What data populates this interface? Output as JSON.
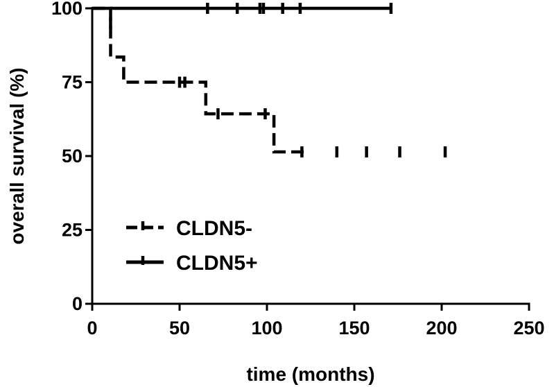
{
  "chart_data": {
    "type": "line",
    "subtype": "kaplan-meier",
    "title": "",
    "xlabel": "time (months)",
    "ylabel": "overall survival (%)",
    "xlim": [
      0,
      250
    ],
    "ylim": [
      0,
      100
    ],
    "xticks": [
      "0",
      "50",
      "100",
      "150",
      "200",
      "250"
    ],
    "yticks": [
      "0",
      "25",
      "50",
      "75",
      "100"
    ],
    "grid": false,
    "legend_position": "bottom-left",
    "series": [
      {
        "name": "CLDN5-",
        "color": "#000000",
        "line_style": "dashed",
        "x": [
          0,
          10.5,
          10.5,
          18,
          18,
          65,
          65,
          104,
          104,
          124
        ],
        "y": [
          100,
          100,
          83.5,
          83.5,
          75,
          75,
          64.3,
          64.3,
          51.4,
          51.4
        ],
        "censored": [
          {
            "x": 10.5,
            "y": 95
          },
          {
            "x": 50,
            "y": 75
          },
          {
            "x": 53,
            "y": 75
          },
          {
            "x": 72,
            "y": 64.3
          },
          {
            "x": 99,
            "y": 64.3
          },
          {
            "x": 120,
            "y": 51.4
          },
          {
            "x": 140,
            "y": 51.4
          },
          {
            "x": 157,
            "y": 51.4
          },
          {
            "x": 176,
            "y": 51.4
          },
          {
            "x": 202,
            "y": 51.4
          }
        ]
      },
      {
        "name": "CLDN5+",
        "color": "#000000",
        "line_style": "solid",
        "x": [
          0,
          171
        ],
        "y": [
          100,
          100
        ],
        "censored": [
          {
            "x": 66,
            "y": 100
          },
          {
            "x": 83,
            "y": 100
          },
          {
            "x": 96,
            "y": 100
          },
          {
            "x": 98,
            "y": 100
          },
          {
            "x": 109,
            "y": 100
          },
          {
            "x": 119,
            "y": 100
          },
          {
            "x": 171,
            "y": 100
          }
        ]
      }
    ]
  }
}
